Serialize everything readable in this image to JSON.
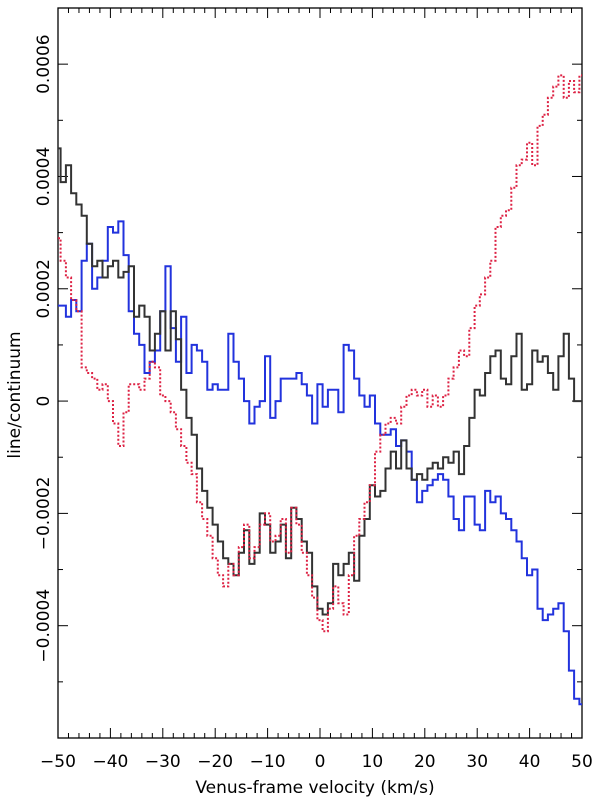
{
  "chart_data": {
    "type": "line",
    "title": "",
    "xlabel": "Venus-frame velocity (km/s)",
    "ylabel": "line/continuum",
    "xlim": [
      -50,
      50
    ],
    "ylim": [
      -0.0006,
      0.0007
    ],
    "xticks": [
      -50,
      -40,
      -30,
      -20,
      -10,
      0,
      10,
      20,
      30,
      40,
      50
    ],
    "yticks": [
      -0.0004,
      -0.0002,
      0,
      0.0002,
      0.0004,
      0.0006
    ],
    "ytick_labels": [
      "-0.0004",
      "-0.0002",
      "0",
      "0.0002",
      "0.0004",
      "0.0006"
    ],
    "grid": false,
    "series": [
      {
        "color": "#2233dd",
        "style": "solid-step",
        "x": [
          -50,
          -49,
          -48,
          -47,
          -46,
          -45,
          -44,
          -43,
          -42,
          -41,
          -40,
          -39,
          -38,
          -37,
          -36,
          -35,
          -34,
          -33,
          -32,
          -31,
          -30,
          -29,
          -28,
          -27,
          -26,
          -25,
          -24,
          -23,
          -22,
          -21,
          -20,
          -19,
          -18,
          -17,
          -16,
          -15,
          -14,
          -13,
          -12,
          -11,
          -10,
          -9,
          -8,
          -7,
          -6,
          -5,
          -4,
          -3,
          -2,
          -1,
          0,
          1,
          2,
          3,
          4,
          5,
          6,
          7,
          8,
          9,
          10,
          11,
          12,
          13,
          14,
          15,
          16,
          17,
          18,
          19,
          20,
          21,
          22,
          23,
          24,
          25,
          26,
          27,
          28,
          29,
          30,
          31,
          32,
          33,
          34,
          35,
          36,
          37,
          38,
          39,
          40,
          41,
          42,
          43,
          44,
          45,
          46,
          47,
          48,
          49,
          50
        ],
        "y": [
          0.00017,
          0.00017,
          0.00015,
          0.00018,
          0.00016,
          0.00025,
          0.00028,
          0.0002,
          0.00022,
          0.00025,
          0.00031,
          0.0003,
          0.00032,
          0.00026,
          0.00016,
          0.00012,
          0.0001,
          5e-05,
          7e-05,
          9e-05,
          0.00016,
          0.00024,
          0.00013,
          7e-05,
          0.00015,
          5e-05,
          0.0001,
          9e-05,
          7e-05,
          2e-05,
          3e-05,
          2e-05,
          2e-05,
          0.00012,
          7e-05,
          4e-05,
          0,
          -4e-05,
          -1e-05,
          0,
          8e-05,
          -3e-05,
          0,
          4e-05,
          4e-05,
          4e-05,
          5e-05,
          3e-05,
          1e-05,
          -4e-05,
          3e-05,
          -1e-05,
          2e-05,
          2e-05,
          -2e-05,
          0.0001,
          9e-05,
          4e-05,
          1e-05,
          -1e-05,
          1e-05,
          -4e-05,
          -6e-05,
          -6e-05,
          -5e-05,
          -8e-05,
          -7e-05,
          -9e-05,
          -0.00014,
          -0.00018,
          -0.00016,
          -0.00015,
          -0.00014,
          -0.00013,
          -0.00014,
          -0.00017,
          -0.00021,
          -0.00023,
          -0.00017,
          -0.00017,
          -0.00022,
          -0.00023,
          -0.00016,
          -0.00018,
          -0.00017,
          -0.0002,
          -0.00021,
          -0.00023,
          -0.00025,
          -0.00028,
          -0.00031,
          -0.0003,
          -0.00037,
          -0.00039,
          -0.00038,
          -0.00037,
          -0.00036,
          -0.00041,
          -0.00048,
          -0.00053,
          -0.00054
        ]
      },
      {
        "color": "#333333",
        "style": "solid-step",
        "x": [
          -50,
          -49,
          -48,
          -47,
          -46,
          -45,
          -44,
          -43,
          -42,
          -41,
          -40,
          -39,
          -38,
          -37,
          -36,
          -35,
          -34,
          -33,
          -32,
          -31,
          -30,
          -29,
          -28,
          -27,
          -26,
          -25,
          -24,
          -23,
          -22,
          -21,
          -20,
          -19,
          -18,
          -17,
          -16,
          -15,
          -14,
          -13,
          -12,
          -11,
          -10,
          -9,
          -8,
          -7,
          -6,
          -5,
          -4,
          -3,
          -2,
          -1,
          0,
          1,
          2,
          3,
          4,
          5,
          6,
          7,
          8,
          9,
          10,
          11,
          12,
          13,
          14,
          15,
          16,
          17,
          18,
          19,
          20,
          21,
          22,
          23,
          24,
          25,
          26,
          27,
          28,
          29,
          30,
          31,
          32,
          33,
          34,
          35,
          36,
          37,
          38,
          39,
          40,
          41,
          42,
          43,
          44,
          45,
          46,
          47,
          48,
          49,
          50
        ],
        "y": [
          0.00045,
          0.00039,
          0.00042,
          0.00037,
          0.00035,
          0.00033,
          0.00028,
          0.00024,
          0.00025,
          0.00022,
          0.00024,
          0.00025,
          0.00022,
          0.00023,
          0.00024,
          0.00015,
          0.00017,
          0.00015,
          9e-05,
          0.00012,
          0.00016,
          9e-05,
          0.00016,
          0.00011,
          2e-05,
          -3e-05,
          -6e-05,
          -0.00012,
          -0.00016,
          -0.00019,
          -0.00022,
          -0.00025,
          -0.00028,
          -0.00029,
          -0.00031,
          -0.00027,
          -0.00023,
          -0.00029,
          -0.00027,
          -0.0002,
          -0.00022,
          -0.00027,
          -0.00025,
          -0.00022,
          -0.00028,
          -0.00019,
          -0.00021,
          -0.00025,
          -0.00027,
          -0.00033,
          -0.00037,
          -0.00038,
          -0.00036,
          -0.00029,
          -0.00031,
          -0.00029,
          -0.00027,
          -0.00032,
          -0.00024,
          -0.00021,
          -0.00015,
          -0.00017,
          -0.00016,
          -0.00012,
          -9e-05,
          -0.00012,
          -7e-05,
          -0.00012,
          -0.00014,
          -0.00013,
          -0.00014,
          -0.00012,
          -0.00011,
          -0.00012,
          -0.0001,
          -0.00011,
          -9e-05,
          -0.00013,
          -8e-05,
          -3e-05,
          2e-05,
          1e-05,
          5e-05,
          8e-05,
          9e-05,
          4e-05,
          3e-05,
          8e-05,
          0.00012,
          2e-05,
          3e-05,
          9e-05,
          7e-05,
          8e-05,
          5e-05,
          2e-05,
          8e-05,
          0.00012,
          4e-05,
          0,
          0
        ]
      },
      {
        "color": "#dd2244",
        "style": "dotted-step",
        "x": [
          -50,
          -49,
          -48,
          -47,
          -46,
          -45,
          -44,
          -43,
          -42,
          -41,
          -40,
          -39,
          -38,
          -37,
          -36,
          -35,
          -34,
          -33,
          -32,
          -31,
          -30,
          -29,
          -28,
          -27,
          -26,
          -25,
          -24,
          -23,
          -22,
          -21,
          -20,
          -19,
          -18,
          -17,
          -16,
          -15,
          -14,
          -13,
          -12,
          -11,
          -10,
          -9,
          -8,
          -7,
          -6,
          -5,
          -4,
          -3,
          -2,
          -1,
          0,
          1,
          2,
          3,
          4,
          5,
          6,
          7,
          8,
          9,
          10,
          11,
          12,
          13,
          14,
          15,
          16,
          17,
          18,
          19,
          20,
          21,
          22,
          23,
          24,
          25,
          26,
          27,
          28,
          29,
          30,
          31,
          32,
          33,
          34,
          35,
          36,
          37,
          38,
          39,
          40,
          41,
          42,
          43,
          44,
          45,
          46,
          47,
          48,
          49,
          50
        ],
        "y": [
          0.00029,
          0.00025,
          0.00022,
          0.00018,
          0.00016,
          6e-05,
          5e-05,
          4e-05,
          2e-05,
          3e-05,
          0,
          -4e-05,
          -8e-05,
          -2e-05,
          3e-05,
          3e-05,
          2e-05,
          4e-05,
          7e-05,
          6e-05,
          1e-05,
          0,
          -2e-05,
          -5e-05,
          -8e-05,
          -0.00011,
          -0.00013,
          -0.00018,
          -0.00021,
          -0.00024,
          -0.00028,
          -0.00031,
          -0.00033,
          -0.00029,
          -0.00031,
          -0.00026,
          -0.00022,
          -0.00028,
          -0.00026,
          -0.00022,
          -0.0002,
          -0.00025,
          -0.00024,
          -0.00021,
          -0.00027,
          -0.00019,
          -0.00022,
          -0.00027,
          -0.00031,
          -0.00035,
          -0.00039,
          -0.00041,
          -0.00037,
          -0.00033,
          -0.00036,
          -0.00038,
          -0.00031,
          -0.00024,
          -0.00021,
          -0.00018,
          -0.00015,
          -9e-05,
          -6e-05,
          -4e-05,
          -3e-05,
          -4e-05,
          -1e-05,
          1e-05,
          2e-05,
          1e-05,
          2e-05,
          -1e-05,
          1e-05,
          -1e-05,
          1e-05,
          4e-05,
          6e-05,
          9e-05,
          8e-05,
          0.00013,
          0.00017,
          0.00019,
          0.00022,
          0.00025,
          0.00031,
          0.00033,
          0.00034,
          0.00038,
          0.00042,
          0.00043,
          0.00046,
          0.00042,
          0.00049,
          0.00051,
          0.00054,
          0.00056,
          0.00058,
          0.00054,
          0.00057,
          0.00055,
          0.00058
        ]
      }
    ]
  }
}
